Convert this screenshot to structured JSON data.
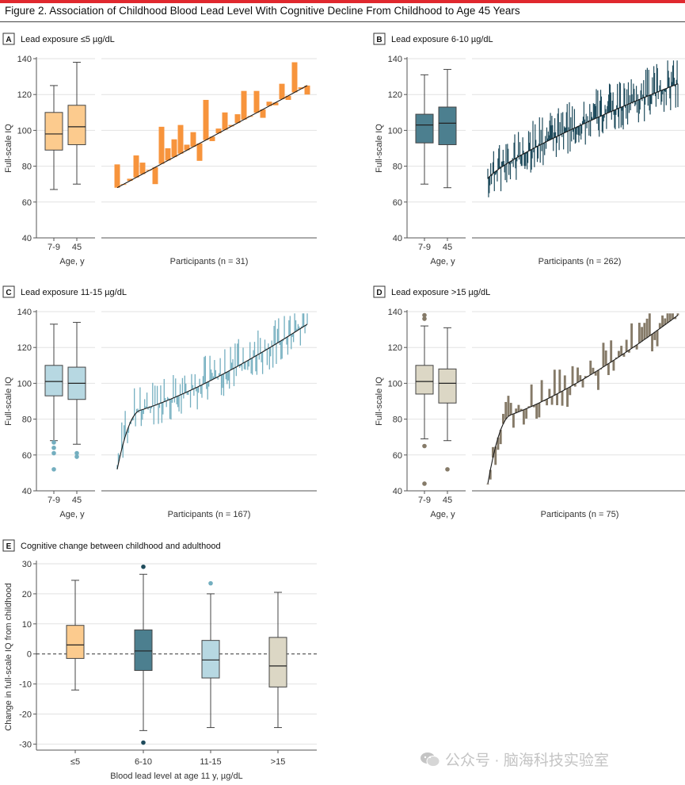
{
  "figure_title": "Figure 2. Association of Childhood Blood Lead Level With Cognitive Decline From Childhood to Age 45 Years",
  "watermark": "公众号 · 脑海科技实验室",
  "chart_data": [
    {
      "panel": "A",
      "type": "boxplot+bar",
      "title": "Lead exposure ≤5 µg/dL",
      "color": "#f7943c",
      "box_fill": "#fccb8e",
      "ylabel": "Full-scale IQ",
      "ylim": [
        40,
        140
      ],
      "yticks": [
        40,
        60,
        80,
        100,
        120,
        140
      ],
      "box_xlabel": "Age, y",
      "box_categories": [
        "7-9",
        "45"
      ],
      "boxes": [
        {
          "min": 67,
          "q1": 89,
          "median": 98,
          "q3": 110,
          "max": 125,
          "outliers": []
        },
        {
          "min": 70,
          "q1": 92,
          "median": 102,
          "q3": 114,
          "max": 138,
          "outliers": []
        }
      ],
      "xlabel": "Participants (n = 31)",
      "line_start": 68,
      "line_end": 125,
      "n_participants": 31,
      "bar_ends": [
        81,
        70,
        73,
        86,
        82,
        78,
        70,
        102,
        90,
        95,
        103,
        92,
        99,
        83,
        117,
        94,
        101,
        110,
        103,
        109,
        122,
        108,
        122,
        107,
        116,
        114,
        126,
        117,
        138,
        124,
        120
      ]
    },
    {
      "panel": "B",
      "type": "boxplot+bar",
      "title": "Lead exposure 6-10 µg/dL",
      "color": "#1e4b5c",
      "box_fill": "#4c7f8f",
      "ylabel": "Full-scale IQ",
      "ylim": [
        40,
        140
      ],
      "yticks": [
        40,
        60,
        80,
        100,
        120,
        140
      ],
      "box_xlabel": "Age, y",
      "box_categories": [
        "7-9",
        "45"
      ],
      "boxes": [
        {
          "min": 70,
          "q1": 93,
          "median": 103,
          "q3": 109,
          "max": 131,
          "outliers": []
        },
        {
          "min": 68,
          "q1": 92,
          "median": 104,
          "q3": 113,
          "max": 134,
          "outliers": []
        }
      ],
      "xlabel": "Participants (n = 262)",
      "line_start": 73,
      "line_end": 126,
      "n_participants": 262,
      "spread": 15
    },
    {
      "panel": "C",
      "type": "boxplot+bar",
      "title": "Lead exposure 11-15 µg/dL",
      "color": "#73aebf",
      "box_fill": "#b7d8e2",
      "ylabel": "Full-scale IQ",
      "ylim": [
        40,
        140
      ],
      "yticks": [
        40,
        60,
        80,
        100,
        120,
        140
      ],
      "box_xlabel": "Age, y",
      "box_categories": [
        "7-9",
        "45"
      ],
      "boxes": [
        {
          "min": 68,
          "q1": 93,
          "median": 101,
          "q3": 110,
          "max": 133,
          "outliers": [
            67,
            64,
            61,
            52
          ]
        },
        {
          "min": 66,
          "q1": 91,
          "median": 100,
          "q3": 109,
          "max": 134,
          "outliers": [
            61,
            59
          ]
        }
      ],
      "xlabel": "Participants (n = 167)",
      "line_start": 52,
      "line_end": 133,
      "n_participants": 167,
      "spread": 14
    },
    {
      "panel": "D",
      "type": "boxplot+bar",
      "title": "Lead exposure >15 µg/dL",
      "color": "#857a68",
      "box_fill": "#dcd7c5",
      "ylabel": "Full-scale IQ",
      "ylim": [
        40,
        140
      ],
      "yticks": [
        40,
        60,
        80,
        100,
        120,
        140
      ],
      "box_xlabel": "Age, y",
      "box_categories": [
        "7-9",
        "45"
      ],
      "boxes": [
        {
          "min": 69,
          "q1": 94,
          "median": 101,
          "q3": 110,
          "max": 132,
          "outliers": [
            138,
            136,
            65,
            44
          ]
        },
        {
          "min": 68,
          "q1": 89,
          "median": 100,
          "q3": 108,
          "max": 131,
          "outliers": [
            52
          ]
        }
      ],
      "xlabel": "Participants (n = 75)",
      "line_start": 44,
      "line_end": 138,
      "n_participants": 75,
      "spread": 13
    },
    {
      "panel": "E",
      "type": "boxplot",
      "title": "Cognitive change between childhood and adulthood",
      "ylabel": "Change in full-scale IQ from childhood",
      "xlabel": "Blood lead level at age 11 y, µg/dL",
      "ylim": [
        -32,
        30
      ],
      "yticks": [
        -30,
        -20,
        -10,
        0,
        10,
        20,
        30
      ],
      "reference_line": 0,
      "categories": [
        "≤5",
        "6-10",
        "11-15",
        ">15"
      ],
      "colors": [
        "#fccb8e",
        "#4c7f8f",
        "#b7d8e2",
        "#dcd7c5"
      ],
      "outlier_colors": [
        "#f7943c",
        "#1e4b5c",
        "#73aebf",
        "#857a68"
      ],
      "boxes": [
        {
          "min": -12,
          "q1": -1.5,
          "median": 3,
          "q3": 9.5,
          "max": 24.5,
          "outliers": []
        },
        {
          "min": -25.5,
          "q1": -5.5,
          "median": 1,
          "q3": 8,
          "max": 26.5,
          "outliers": [
            29,
            -29.5
          ]
        },
        {
          "min": -24.5,
          "q1": -8,
          "median": -2,
          "q3": 4.5,
          "max": 20,
          "outliers": [
            23.5
          ]
        },
        {
          "min": -24.5,
          "q1": -11,
          "median": -4,
          "q3": 5.5,
          "max": 20.5,
          "outliers": []
        }
      ]
    }
  ]
}
